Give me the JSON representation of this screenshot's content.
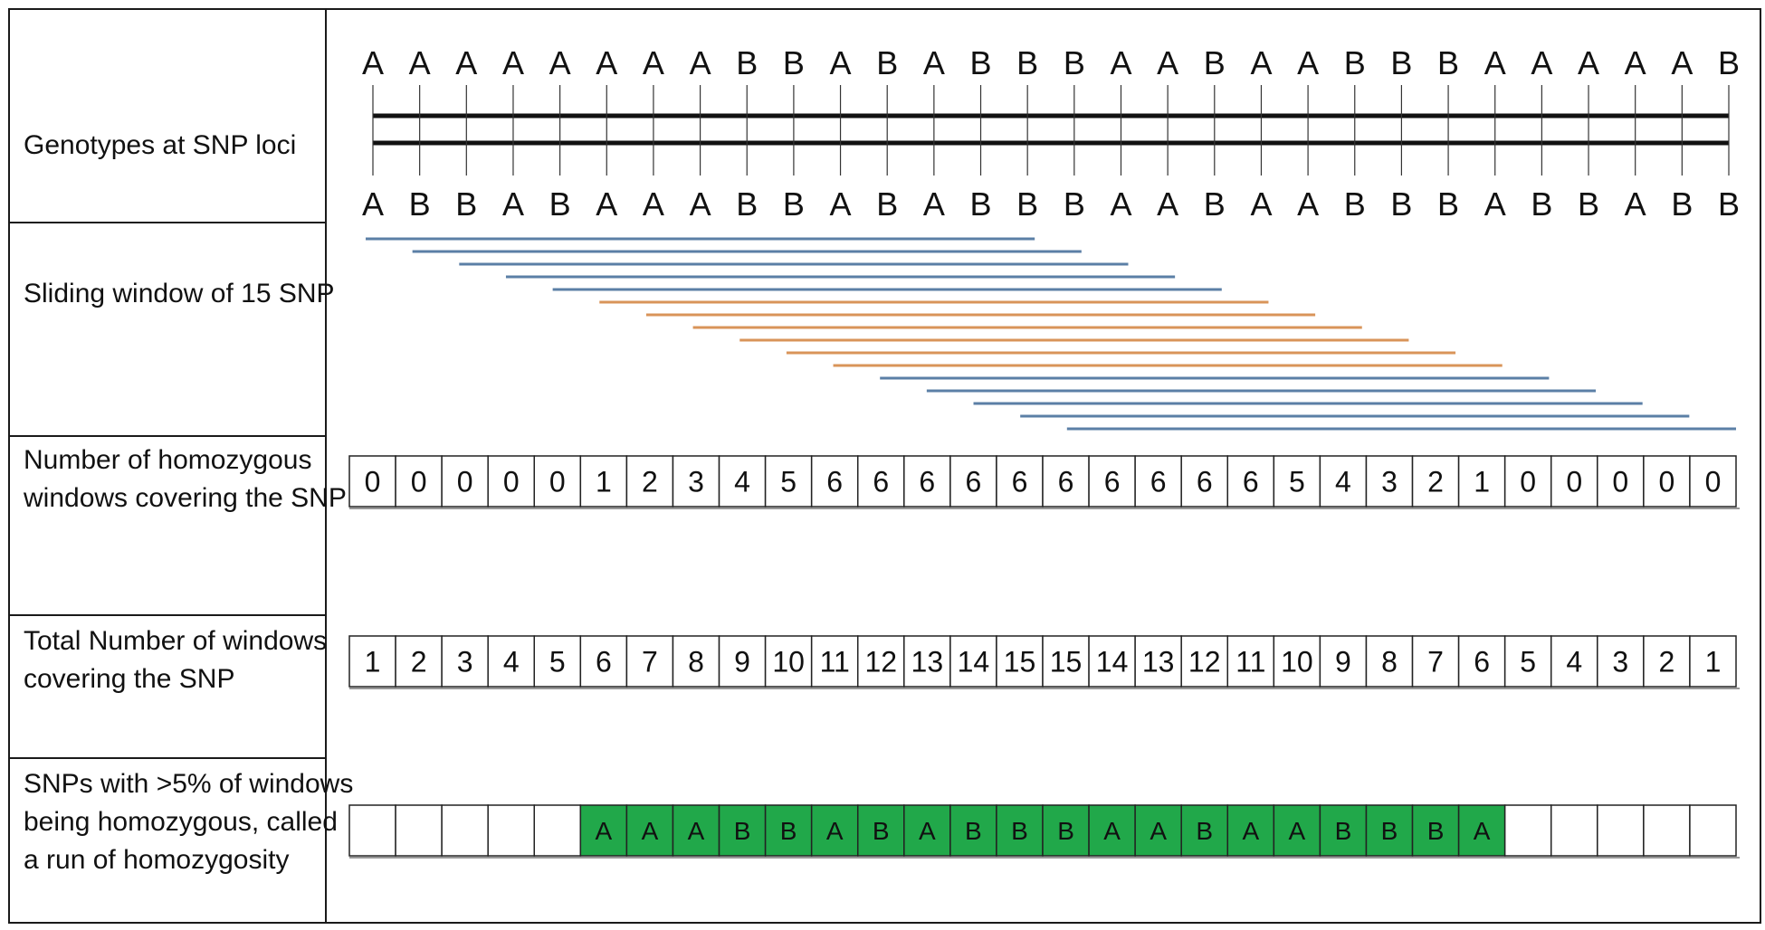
{
  "rows": [
    {
      "label": "Genotypes at SNP loci"
    },
    {
      "label": "Sliding window of 15 SNP"
    },
    {
      "label": "Number of homozygous windows covering the SNP"
    },
    {
      "label": "Total Number of windows covering the SNP"
    },
    {
      "label": "SNPs with >5% of windows being homozygous, called a run of homozygosity"
    }
  ],
  "genotypes": {
    "top": [
      "A",
      "A",
      "A",
      "A",
      "A",
      "A",
      "A",
      "A",
      "B",
      "B",
      "A",
      "B",
      "A",
      "B",
      "B",
      "B",
      "A",
      "A",
      "B",
      "A",
      "A",
      "B",
      "B",
      "B",
      "A",
      "A",
      "A",
      "A",
      "A",
      "B"
    ],
    "bottom": [
      "A",
      "B",
      "B",
      "A",
      "B",
      "A",
      "A",
      "A",
      "B",
      "B",
      "A",
      "B",
      "A",
      "B",
      "B",
      "B",
      "A",
      "A",
      "B",
      "A",
      "A",
      "B",
      "B",
      "B",
      "A",
      "B",
      "B",
      "A",
      "B",
      "B"
    ]
  },
  "sliding_windows": {
    "window_size": 15,
    "starts": [
      1,
      2,
      3,
      4,
      5,
      6,
      7,
      8,
      9,
      10,
      11,
      12,
      13,
      14,
      15,
      16
    ],
    "homozygous": [
      false,
      false,
      false,
      false,
      false,
      true,
      true,
      true,
      true,
      true,
      true,
      false,
      false,
      false,
      false,
      false
    ],
    "colors": {
      "heterozygous": "#5b7fa6",
      "homozygous": "#d99459"
    }
  },
  "homozygous_counts": [
    0,
    0,
    0,
    0,
    0,
    1,
    2,
    3,
    4,
    5,
    6,
    6,
    6,
    6,
    6,
    6,
    6,
    6,
    6,
    6,
    5,
    4,
    3,
    2,
    1,
    0,
    0,
    0,
    0,
    0
  ],
  "total_counts": [
    1,
    2,
    3,
    4,
    5,
    6,
    7,
    8,
    9,
    10,
    11,
    12,
    13,
    14,
    15,
    15,
    14,
    13,
    12,
    11,
    10,
    9,
    8,
    7,
    6,
    5,
    4,
    3,
    2,
    1
  ],
  "roh": {
    "values": [
      "",
      "",
      "",
      "",
      "",
      "A",
      "A",
      "A",
      "B",
      "B",
      "A",
      "B",
      "A",
      "B",
      "B",
      "B",
      "A",
      "A",
      "B",
      "A",
      "A",
      "B",
      "B",
      "B",
      "A",
      "",
      "",
      "",
      "",
      ""
    ],
    "fill": "#21a84a"
  }
}
